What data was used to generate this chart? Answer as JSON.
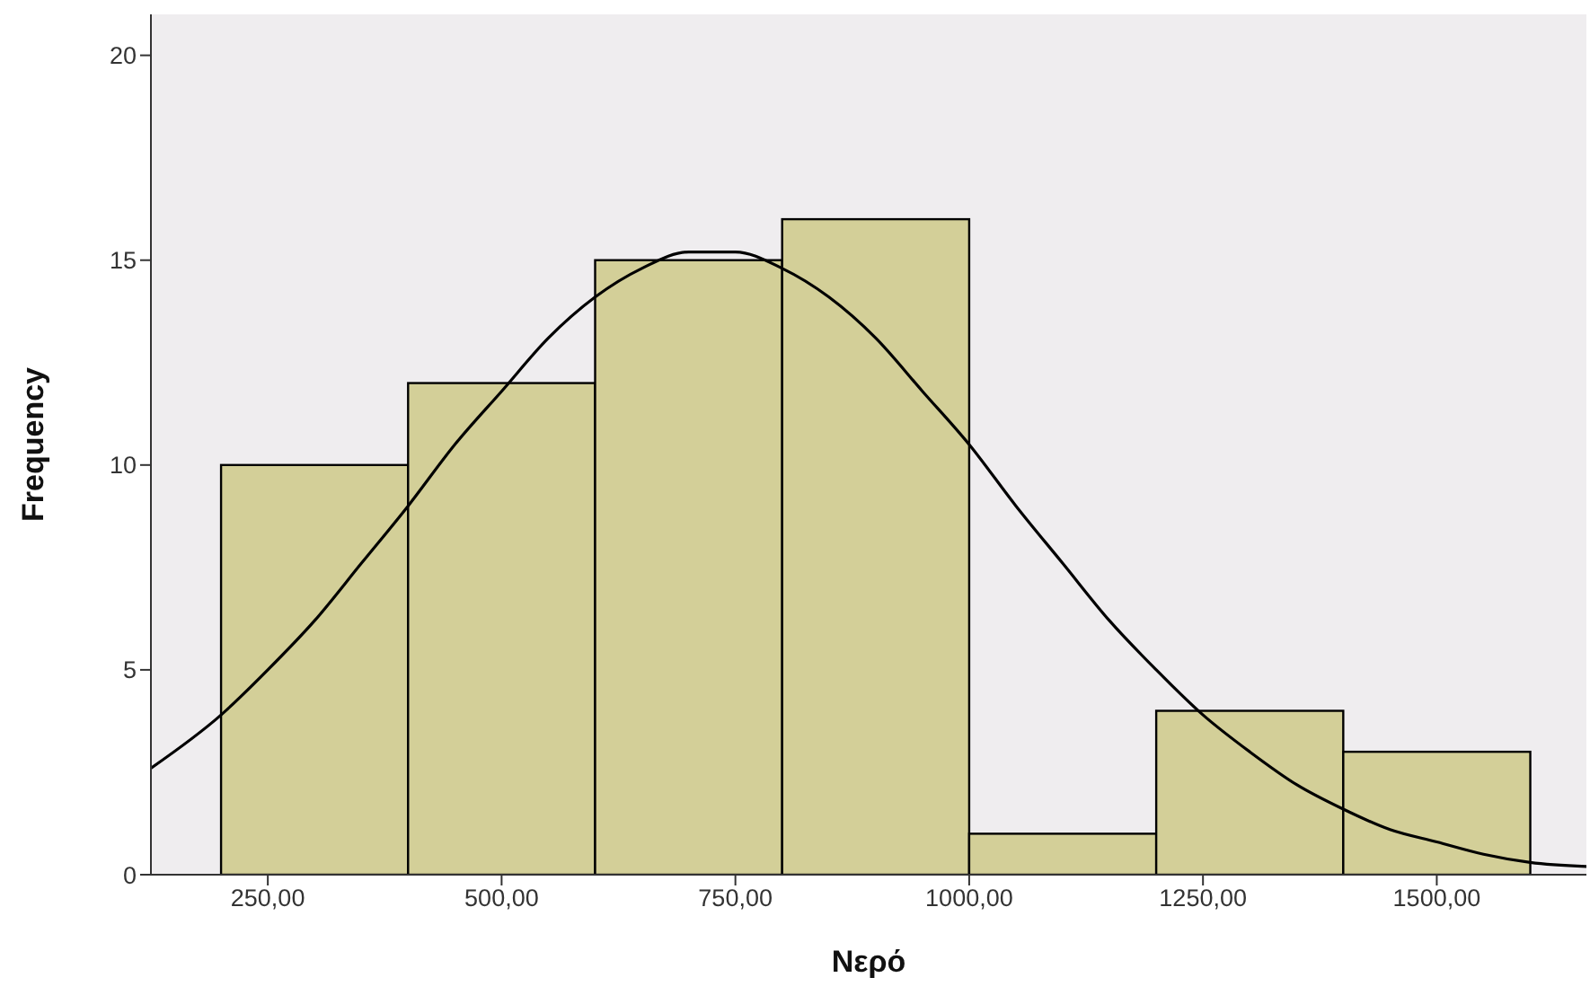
{
  "chart_data": {
    "type": "histogram",
    "xlabel": "Νερό",
    "ylabel": "Frequency",
    "bins": [
      200,
      400,
      600,
      800,
      1000,
      1200,
      1400,
      1600
    ],
    "values": [
      10,
      12,
      15,
      16,
      1,
      4,
      3
    ],
    "color": "#d3cf98",
    "xlim": [
      125,
      1660
    ],
    "xticks": [
      {
        "value": 250,
        "label": "250,00"
      },
      {
        "value": 500,
        "label": "500,00"
      },
      {
        "value": 750,
        "label": "750,00"
      },
      {
        "value": 1000,
        "label": "1000,00"
      },
      {
        "value": 1250,
        "label": "1250,00"
      },
      {
        "value": 1500,
        "label": "1500,00"
      }
    ],
    "ylim": [
      0,
      21
    ],
    "yticks": [
      0,
      5,
      10,
      15,
      20
    ],
    "grid": false,
    "series": [
      {
        "type": "line",
        "color": "#000000",
        "x": [
          125,
          200,
          250,
          300,
          350,
          400,
          450,
          500,
          550,
          600,
          650,
          700,
          725,
          750,
          800,
          850,
          900,
          950,
          1000,
          1050,
          1100,
          1150,
          1200,
          1250,
          1300,
          1350,
          1400,
          1450,
          1500,
          1550,
          1600,
          1660
        ],
        "values": [
          2.6,
          3.9,
          5.0,
          6.2,
          7.6,
          9.0,
          10.5,
          11.8,
          13.1,
          14.1,
          14.8,
          15.2,
          15.2,
          15.2,
          14.8,
          14.1,
          13.1,
          11.8,
          10.5,
          9.0,
          7.6,
          6.2,
          5.0,
          3.9,
          3.0,
          2.2,
          1.6,
          1.1,
          0.8,
          0.5,
          0.3,
          0.2
        ]
      }
    ]
  }
}
